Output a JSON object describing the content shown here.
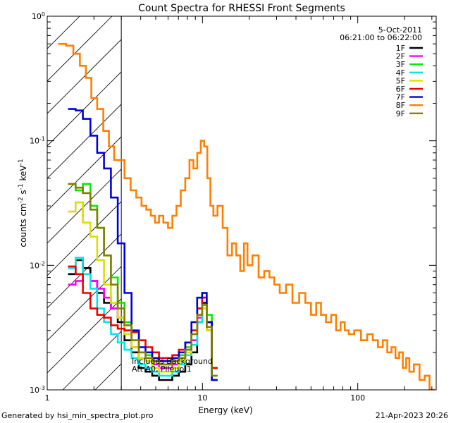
{
  "chart_data": {
    "type": "line",
    "title": "Count Spectra for RHESSI Front Segments",
    "xlabel": "Energy (keV)",
    "ylabel_parts": [
      "counts cm",
      "-2",
      " s",
      "-1",
      " keV",
      "-1"
    ],
    "xscale": "log",
    "yscale": "log",
    "xlim": [
      1.0,
      320.0
    ],
    "ylim": [
      0.001,
      1.0
    ],
    "x_ticks": [
      {
        "value": 1,
        "label": "1"
      },
      {
        "value": 10,
        "label": "10"
      },
      {
        "value": 100,
        "label": "100"
      }
    ],
    "y_ticks": [
      {
        "value": 0.001,
        "base": "10",
        "exp": "-3"
      },
      {
        "value": 0.01,
        "base": "10",
        "exp": "-2"
      },
      {
        "value": 0.1,
        "base": "10",
        "exp": "-1"
      },
      {
        "value": 1.0,
        "base": "10",
        "exp": "0"
      }
    ],
    "date": "5-Oct-2011",
    "time_range": "06:21:00 to 06:22:00",
    "excluded_region_keV": [
      1.0,
      3.0
    ],
    "annotations": [
      "Includes Background",
      "Att A0, Pileup 1"
    ],
    "series": [
      {
        "name": "1F",
        "color": "#000000",
        "x": [
          1.45,
          1.6,
          1.8,
          2.0,
          2.2,
          2.45,
          2.7,
          3.0,
          3.3,
          3.7,
          4.1,
          4.5,
          5.0,
          5.5,
          6.1,
          6.7,
          7.4,
          8.1,
          8.9,
          9.6,
          10.3,
          11.0,
          12.0
        ],
        "values": [
          0.0085,
          0.011,
          0.0095,
          0.0075,
          0.006,
          0.005,
          0.0045,
          0.0035,
          0.0025,
          0.002,
          0.0015,
          0.0014,
          0.0013,
          0.0012,
          0.0012,
          0.0013,
          0.0014,
          0.0016,
          0.002,
          0.0035,
          0.005,
          0.003,
          0.0012
        ]
      },
      {
        "name": "2F",
        "color": "#ff00ff",
        "x": [
          1.45,
          1.6,
          1.8,
          2.0,
          2.2,
          2.45,
          2.7,
          3.0,
          3.3,
          3.7,
          4.1,
          4.5,
          5.0,
          5.5,
          6.1,
          6.7,
          7.4,
          8.1,
          8.9,
          9.6,
          10.3,
          11.0,
          12.0
        ],
        "values": [
          0.007,
          0.0075,
          0.0085,
          0.0075,
          0.0065,
          0.0055,
          0.0045,
          0.0038,
          0.003,
          0.0022,
          0.0018,
          0.0017,
          0.0016,
          0.0015,
          0.0015,
          0.0016,
          0.0018,
          0.002,
          0.0025,
          0.0038,
          0.0055,
          0.0035,
          0.0015
        ]
      },
      {
        "name": "3F",
        "color": "#00ee00",
        "x": [
          1.45,
          1.6,
          1.8,
          2.0,
          2.2,
          2.45,
          2.7,
          3.0,
          3.3,
          3.7,
          4.1,
          4.5,
          5.0,
          5.5,
          6.1,
          6.7,
          7.4,
          8.1,
          8.9,
          9.6,
          10.3,
          11.0,
          12.0
        ],
        "values": [
          0.045,
          0.04,
          0.045,
          0.03,
          0.02,
          0.012,
          0.008,
          0.005,
          0.0035,
          0.0025,
          0.002,
          0.0019,
          0.0017,
          0.0016,
          0.0016,
          0.0017,
          0.0019,
          0.0022,
          0.003,
          0.0045,
          0.006,
          0.004,
          0.0015
        ]
      },
      {
        "name": "4F",
        "color": "#00e5ee",
        "x": [
          1.45,
          1.6,
          1.8,
          2.0,
          2.2,
          2.45,
          2.7,
          3.0,
          3.3,
          3.7,
          4.1,
          4.5,
          5.0,
          5.5,
          6.1,
          6.7,
          7.4,
          8.1,
          8.9,
          9.6,
          10.3,
          11.0,
          12.0
        ],
        "values": [
          0.0095,
          0.0115,
          0.0085,
          0.0065,
          0.0045,
          0.0035,
          0.0028,
          0.0024,
          0.0021,
          0.0018,
          0.0016,
          0.0015,
          0.0014,
          0.0013,
          0.0013,
          0.0014,
          0.0016,
          0.0019,
          0.0023,
          0.0035,
          0.0045,
          0.003,
          0.0012
        ]
      },
      {
        "name": "5F",
        "color": "#dddd00",
        "x": [
          1.45,
          1.6,
          1.8,
          2.0,
          2.2,
          2.45,
          2.7,
          3.0,
          3.3,
          3.7,
          4.1,
          4.5,
          5.0,
          5.5,
          6.1,
          6.7,
          7.4,
          8.1,
          8.9,
          9.6,
          10.3,
          11.0,
          12.0
        ],
        "values": [
          0.027,
          0.032,
          0.022,
          0.017,
          0.011,
          0.007,
          0.005,
          0.0038,
          0.0028,
          0.0022,
          0.0018,
          0.0017,
          0.0015,
          0.0014,
          0.0014,
          0.0015,
          0.0017,
          0.002,
          0.0028,
          0.004,
          0.0045,
          0.003,
          0.0012
        ]
      },
      {
        "name": "6F",
        "color": "#ee0000",
        "x": [
          1.45,
          1.6,
          1.8,
          2.0,
          2.2,
          2.45,
          2.7,
          3.0,
          3.3,
          3.7,
          4.1,
          4.5,
          5.0,
          5.5,
          6.1,
          6.7,
          7.4,
          8.1,
          8.9,
          9.6,
          10.3,
          11.0,
          12.0
        ],
        "values": [
          0.0098,
          0.0085,
          0.006,
          0.0045,
          0.004,
          0.0038,
          0.0033,
          0.0031,
          0.003,
          0.0029,
          0.0025,
          0.0022,
          0.002,
          0.0018,
          0.0018,
          0.0019,
          0.0021,
          0.0024,
          0.003,
          0.0045,
          0.0055,
          0.0035,
          0.0015
        ]
      },
      {
        "name": "7F",
        "color": "#0000dd",
        "x": [
          1.45,
          1.6,
          1.8,
          2.0,
          2.2,
          2.45,
          2.7,
          3.0,
          3.3,
          3.7,
          4.1,
          4.5,
          5.0,
          5.5,
          6.1,
          6.7,
          7.4,
          8.1,
          8.9,
          9.6,
          10.3,
          11.0,
          12.0
        ],
        "values": [
          0.18,
          0.175,
          0.15,
          0.11,
          0.08,
          0.06,
          0.035,
          0.015,
          0.006,
          0.003,
          0.0022,
          0.002,
          0.0018,
          0.0017,
          0.0017,
          0.0018,
          0.002,
          0.0024,
          0.0035,
          0.0055,
          0.006,
          0.0035,
          0.0012
        ]
      },
      {
        "name": "8F",
        "color": "#ff7f00",
        "x": [
          1.25,
          1.4,
          1.55,
          1.7,
          1.85,
          2.0,
          2.2,
          2.4,
          2.6,
          2.8,
          3.0,
          3.3,
          3.6,
          3.9,
          4.2,
          4.5,
          4.8,
          5.1,
          5.4,
          5.8,
          6.2,
          6.6,
          7.0,
          7.5,
          8.0,
          8.5,
          9.0,
          9.5,
          10.0,
          10.5,
          11.0,
          11.5,
          12.0,
          13.0,
          14.0,
          15.0,
          16.0,
          17.0,
          18.0,
          19.0,
          20.0,
          22.0,
          24.0,
          26.0,
          28.0,
          30.0,
          33.0,
          36.0,
          40.0,
          44.0,
          48.0,
          52.0,
          56.0,
          60.0,
          65.0,
          70.0,
          75.0,
          80.0,
          85.0,
          90.0,
          100.0,
          110.0,
          120.0,
          130.0,
          140.0,
          150.0,
          160.0,
          170.0,
          180.0,
          190.0,
          200.0,
          210.0,
          220.0,
          240.0,
          260.0,
          280.0,
          300.0
        ],
        "values": [
          0.6,
          0.58,
          0.5,
          0.4,
          0.32,
          0.22,
          0.18,
          0.12,
          0.09,
          0.07,
          0.07,
          0.05,
          0.04,
          0.035,
          0.03,
          0.028,
          0.025,
          0.022,
          0.025,
          0.022,
          0.02,
          0.025,
          0.03,
          0.04,
          0.05,
          0.07,
          0.06,
          0.08,
          0.1,
          0.09,
          0.05,
          0.03,
          0.025,
          0.03,
          0.02,
          0.012,
          0.015,
          0.012,
          0.009,
          0.015,
          0.01,
          0.012,
          0.008,
          0.009,
          0.008,
          0.007,
          0.006,
          0.007,
          0.005,
          0.006,
          0.005,
          0.004,
          0.005,
          0.004,
          0.0035,
          0.004,
          0.003,
          0.0035,
          0.003,
          0.0028,
          0.003,
          0.0025,
          0.0028,
          0.0025,
          0.0022,
          0.0025,
          0.002,
          0.0022,
          0.0018,
          0.002,
          0.0015,
          0.0018,
          0.0014,
          0.0016,
          0.0012,
          0.0013,
          0.001
        ]
      },
      {
        "name": "9F",
        "color": "#808000",
        "x": [
          1.45,
          1.6,
          1.8,
          2.0,
          2.2,
          2.45,
          2.7,
          3.0,
          3.3,
          3.7,
          4.1,
          4.5,
          5.0,
          5.5,
          6.1,
          6.7,
          7.4,
          8.1,
          8.9,
          9.6,
          10.3,
          11.0,
          12.0
        ],
        "values": [
          0.045,
          0.042,
          0.038,
          0.028,
          0.02,
          0.012,
          0.007,
          0.0045,
          0.0033,
          0.0025,
          0.002,
          0.0018,
          0.0017,
          0.0016,
          0.0016,
          0.0017,
          0.0018,
          0.0021,
          0.0028,
          0.004,
          0.0048,
          0.0032,
          0.0013
        ]
      }
    ]
  },
  "footer": {
    "generated_by": "Generated by hsi_min_spectra_plot.pro",
    "timestamp": "21-Apr-2023 20:26"
  }
}
